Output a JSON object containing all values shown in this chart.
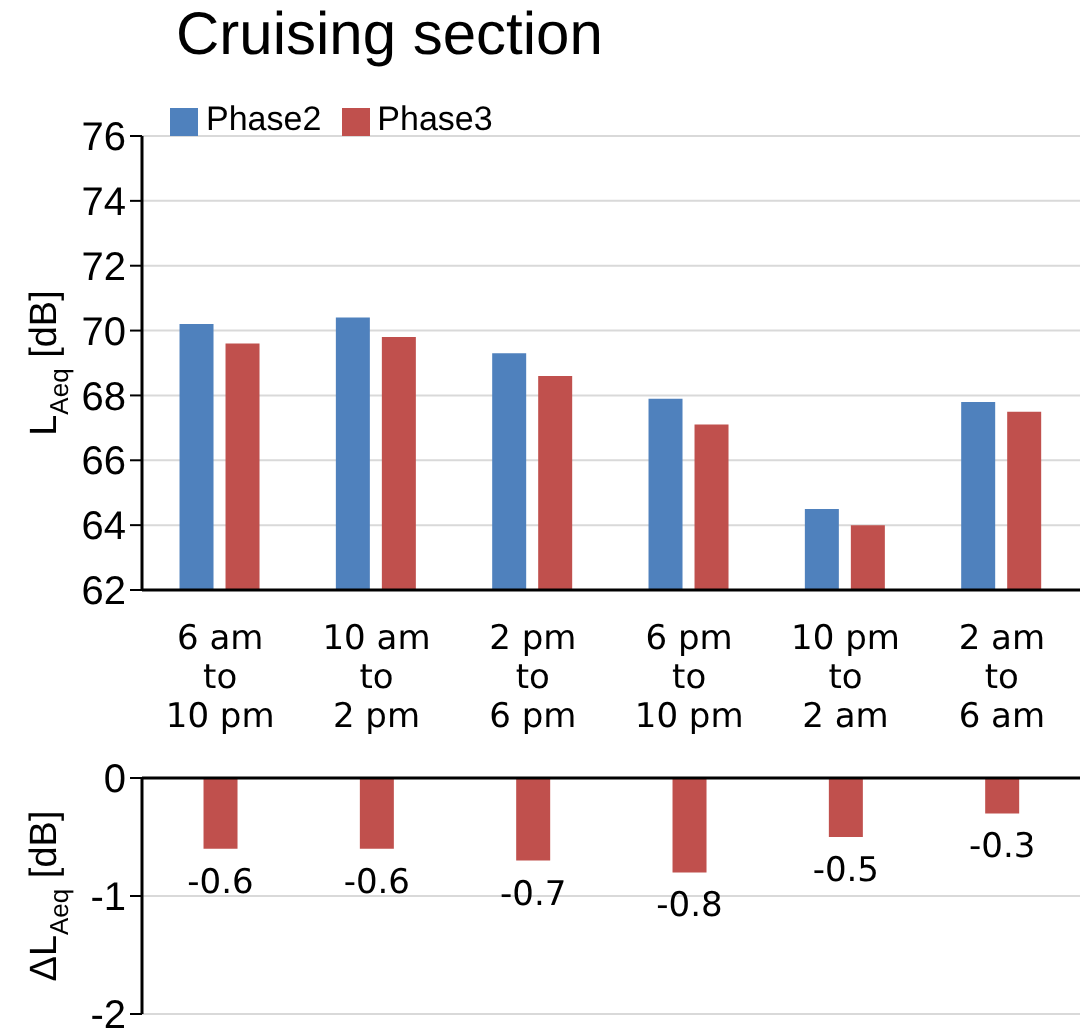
{
  "chart_data": [
    {
      "type": "bar",
      "title": "Cruising section",
      "ylabel": "L$_{Aeq}$ [dB]",
      "categories": [
        "6 am\nto\n10 pm",
        "10 am\nto\n2 pm",
        "2 pm\nto\n6 pm",
        "6 pm\nto\n10 pm",
        "10 pm\nto\n2 am",
        "2 am\nto\n6 am"
      ],
      "series": [
        {
          "name": "Phase2",
          "color": "#4f81bd",
          "values": [
            70.2,
            70.4,
            69.3,
            67.9,
            64.5,
            67.8
          ]
        },
        {
          "name": "Phase3",
          "color": "#c0504d",
          "values": [
            69.6,
            69.8,
            68.6,
            67.1,
            64.0,
            67.5
          ]
        }
      ],
      "ylim": [
        62,
        76
      ],
      "yticks": [
        62,
        64,
        66,
        68,
        70,
        72,
        74,
        76
      ],
      "grid": "y",
      "legend": "top left"
    },
    {
      "type": "bar",
      "ylabel": "ΔL$_{Aeq}$ [dB]",
      "series": [
        {
          "color": "#c0504d",
          "values": [
            -0.6,
            -0.6,
            -0.7,
            -0.8,
            -0.5,
            -0.3
          ]
        }
      ],
      "ylim": [
        -2,
        0
      ],
      "yticks": [
        -2,
        -1,
        0
      ],
      "grid": "y",
      "data_labels": true,
      "tick_labels": "y"
    }
  ]
}
